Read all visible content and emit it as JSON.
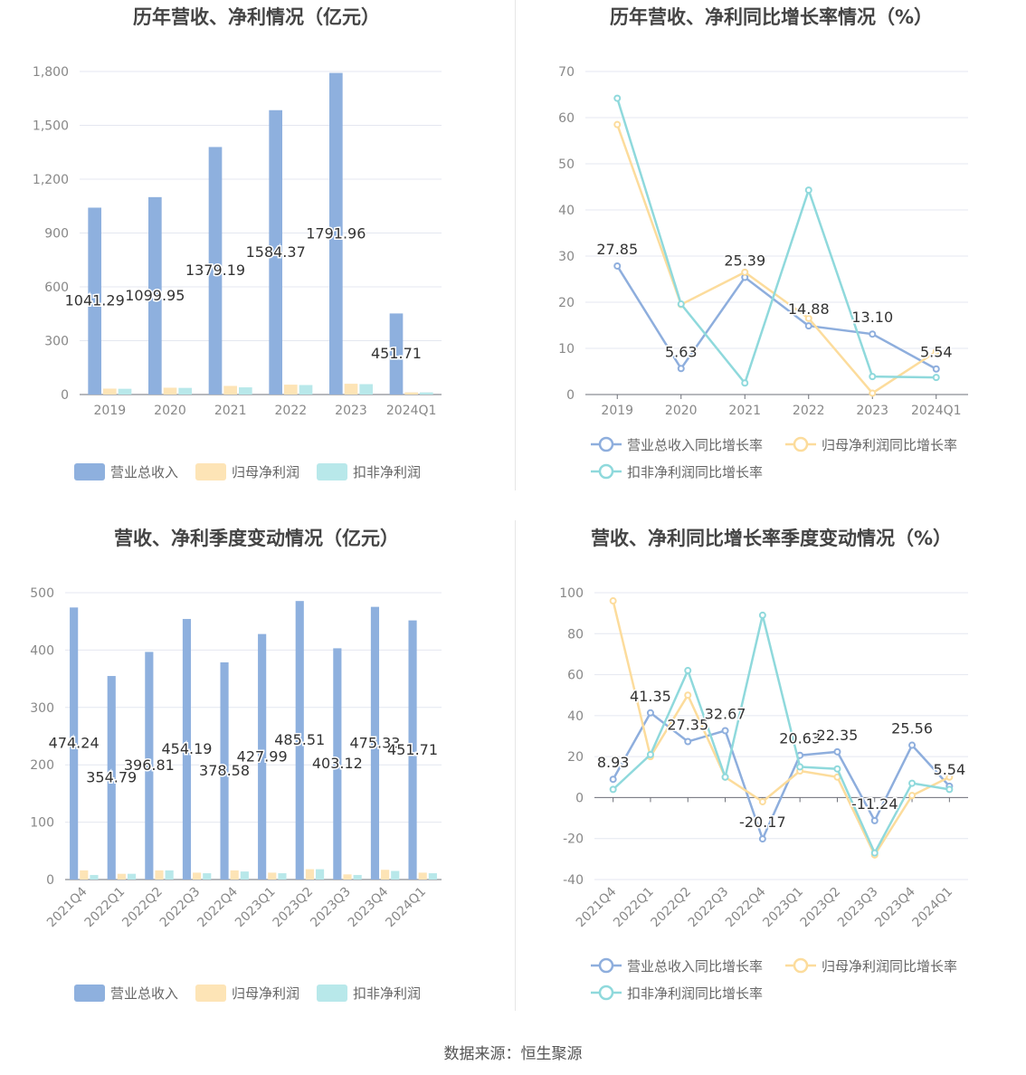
{
  "source_text": "数据来源：恒生聚源",
  "colors": {
    "revenue": "#8eb0de",
    "net_profit": "#fde4b6",
    "deducted": "#b8e8ea",
    "revenue_line": "#8eaedd",
    "net_line": "#fcdc9c",
    "deducted_line": "#8fd9dc"
  },
  "chart_data": [
    {
      "type": "bar",
      "title": "历年营收、净利情况（亿元）",
      "categories": [
        "2019",
        "2020",
        "2021",
        "2022",
        "2023",
        "2024Q1"
      ],
      "ylim": [
        0,
        1800
      ],
      "yticks": [
        0,
        300,
        600,
        900,
        1200,
        1500,
        1800
      ],
      "ytick_labels": [
        "0",
        "300",
        "600",
        "900",
        "1,200",
        "1,500",
        "1,800"
      ],
      "series": [
        {
          "name": "营业总收入",
          "values": [
            1041.29,
            1099.95,
            1379.19,
            1584.37,
            1791.96,
            451.71
          ],
          "labels": [
            "1041.29",
            "1099.95",
            "1379.19",
            "1584.37",
            "1791.96",
            "451.71"
          ]
        },
        {
          "name": "归母净利润",
          "values": [
            33,
            38,
            48,
            55,
            60,
            12
          ]
        },
        {
          "name": "扣非净利润",
          "values": [
            32,
            37,
            40,
            53,
            58,
            12
          ]
        }
      ]
    },
    {
      "type": "line",
      "title": "历年营收、净利同比增长率情况（%）",
      "categories": [
        "2019",
        "2020",
        "2021",
        "2022",
        "2023",
        "2024Q1"
      ],
      "ylim": [
        0,
        70
      ],
      "yticks": [
        0,
        10,
        20,
        30,
        40,
        50,
        60,
        70
      ],
      "ytick_labels": [
        "0",
        "10",
        "20",
        "30",
        "40",
        "50",
        "60",
        "70"
      ],
      "series": [
        {
          "name": "营业总收入同比增长率",
          "values": [
            27.85,
            5.63,
            25.39,
            14.88,
            13.1,
            5.54
          ],
          "labels": [
            "27.85",
            "5.63",
            "25.39",
            "14.88",
            "13.10",
            "5.54"
          ]
        },
        {
          "name": "归母净利润同比增长率",
          "values": [
            58.5,
            19.5,
            26.5,
            16.5,
            0.3,
            9.3
          ]
        },
        {
          "name": "扣非净利润同比增长率",
          "values": [
            64.2,
            19.6,
            2.5,
            44.3,
            3.9,
            3.7
          ]
        }
      ]
    },
    {
      "type": "bar",
      "title": "营收、净利季度变动情况（亿元）",
      "categories": [
        "2021Q4",
        "2022Q1",
        "2022Q2",
        "2022Q3",
        "2022Q4",
        "2023Q1",
        "2023Q2",
        "2023Q3",
        "2023Q4",
        "2024Q1"
      ],
      "ylim": [
        0,
        500
      ],
      "yticks": [
        0,
        100,
        200,
        300,
        400,
        500
      ],
      "ytick_labels": [
        "0",
        "100",
        "200",
        "300",
        "400",
        "500"
      ],
      "series": [
        {
          "name": "营业总收入",
          "values": [
            474.24,
            354.79,
            396.81,
            454.19,
            378.58,
            427.99,
            485.51,
            403.12,
            475.33,
            451.71
          ],
          "labels": [
            "474.24",
            "354.79",
            "396.81",
            "454.19",
            "378.58",
            "427.99",
            "485.51",
            "403.12",
            "475.33",
            "451.71"
          ]
        },
        {
          "name": "归母净利润",
          "values": [
            16,
            10,
            16,
            12,
            16,
            12,
            18,
            9,
            17,
            12
          ]
        },
        {
          "name": "扣非净利润",
          "values": [
            8,
            10,
            16,
            11,
            14,
            11,
            18,
            8,
            15,
            11
          ]
        }
      ]
    },
    {
      "type": "line",
      "title": "营收、净利同比增长率季度变动情况（%）",
      "categories": [
        "2021Q4",
        "2022Q1",
        "2022Q2",
        "2022Q3",
        "2022Q4",
        "2023Q1",
        "2023Q2",
        "2023Q3",
        "2023Q4",
        "2024Q1"
      ],
      "ylim": [
        -40,
        100
      ],
      "yticks": [
        -40,
        -20,
        0,
        20,
        40,
        60,
        80,
        100
      ],
      "ytick_labels": [
        "-40",
        "-20",
        "0",
        "20",
        "40",
        "60",
        "80",
        "100"
      ],
      "series": [
        {
          "name": "营业总收入同比增长率",
          "values": [
            8.93,
            41.35,
            27.35,
            32.67,
            -20.17,
            20.63,
            22.35,
            -11.24,
            25.56,
            5.54
          ],
          "labels": [
            "8.93",
            "41.35",
            "27.35",
            "32.67",
            "-20.17",
            "20.63",
            "22.35",
            "-11.24",
            "25.56",
            "5.54"
          ]
        },
        {
          "name": "归母净利润同比增长率",
          "values": [
            96,
            20,
            50,
            10,
            -2,
            13,
            10,
            -28,
            1,
            10
          ]
        },
        {
          "name": "扣非净利润同比增长率",
          "values": [
            4,
            21,
            62,
            10,
            89,
            15,
            14,
            -27,
            7,
            4
          ]
        }
      ]
    }
  ]
}
